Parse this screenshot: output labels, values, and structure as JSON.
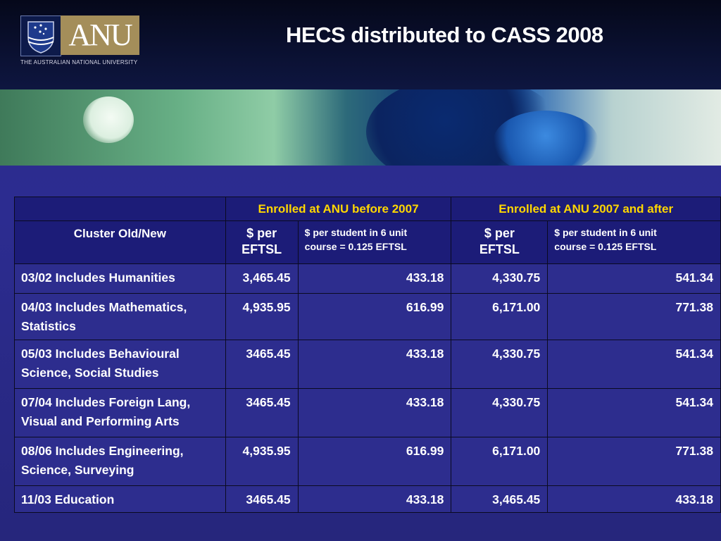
{
  "branding": {
    "logo_text": "ANU",
    "university_name": "THE AUSTRALIAN NATIONAL UNIVERSITY"
  },
  "slide": {
    "title": "HECS distributed to CASS 2008"
  },
  "table": {
    "group_headers": [
      "Enrolled at ANU before 2007",
      "Enrolled at ANU 2007 and after"
    ],
    "sub_headers": {
      "cluster": "Cluster Old/New",
      "eftsl_line1": "$ per",
      "eftsl_line2": "EFTSL",
      "unit_line1": "$ per student in 6 unit",
      "unit_line2": "course = 0.125 EFTSL"
    },
    "rows": [
      {
        "label": "03/02 Includes Humanities",
        "before_eftsl": "3,465.45",
        "before_unit": "433.18",
        "after_eftsl": "4,330.75",
        "after_unit": "541.34"
      },
      {
        "label": "04/03  Includes Mathematics, Statistics",
        "before_eftsl": "4,935.95",
        "before_unit": "616.99",
        "after_eftsl": "6,171.00",
        "after_unit": "771.38"
      },
      {
        "label": "05/03 Includes Behavioural Science, Social Studies",
        "before_eftsl": "3465.45",
        "before_unit": "433.18",
        "after_eftsl": "4,330.75",
        "after_unit": "541.34"
      },
      {
        "label": "07/04 Includes  Foreign Lang, Visual and Performing Arts",
        "before_eftsl": "3465.45",
        "before_unit": "433.18",
        "after_eftsl": "4,330.75",
        "after_unit": "541.34"
      },
      {
        "label": "08/06 Includes Engineering, Science, Surveying",
        "before_eftsl": "4,935.95",
        "before_unit": "616.99",
        "after_eftsl": "6,171.00",
        "after_unit": "771.38"
      },
      {
        "label": "11/03 Education",
        "before_eftsl": "3465.45",
        "before_unit": "433.18",
        "after_eftsl": "3,465.45",
        "after_unit": "433.18"
      }
    ]
  },
  "colors": {
    "slide_background": "#2c2c90",
    "header_background": "#0a1030",
    "group_header_text": "#ffd700",
    "logo_box": "#a48e5a"
  }
}
